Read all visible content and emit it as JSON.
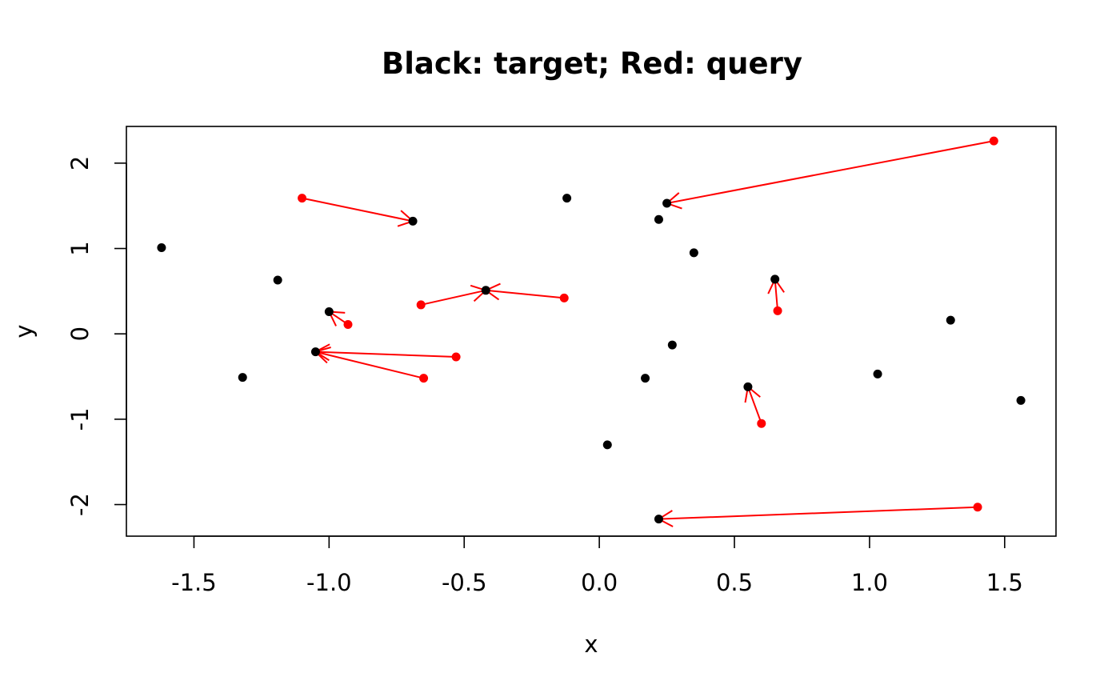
{
  "chart_data": {
    "type": "scatter",
    "title": "Black: target; Red: query",
    "xlabel": "x",
    "ylabel": "y",
    "xlim": [
      -1.75,
      1.69
    ],
    "ylim": [
      -2.37,
      2.43
    ],
    "xticks": [
      -1.5,
      -1.0,
      -0.5,
      0.0,
      0.5,
      1.0,
      1.5
    ],
    "xtick_labels": [
      "-1.5",
      "-1.0",
      "-0.5",
      "0.0",
      "0.5",
      "1.0",
      "1.5"
    ],
    "yticks": [
      -2,
      -1,
      0,
      1,
      2
    ],
    "ytick_labels": [
      "-2",
      "-1",
      "0",
      "1",
      "2"
    ],
    "grid": false,
    "legend": "none",
    "colors": {
      "target": "#000000",
      "query": "#ff0000",
      "arrow": "#ff0000"
    },
    "target_points": [
      [
        -1.62,
        1.01
      ],
      [
        -1.32,
        -0.51
      ],
      [
        -1.19,
        0.63
      ],
      [
        -1.0,
        0.26
      ],
      [
        -1.05,
        -0.21
      ],
      [
        -0.69,
        1.32
      ],
      [
        -0.42,
        0.51
      ],
      [
        -0.12,
        1.59
      ],
      [
        0.03,
        -1.3
      ],
      [
        0.17,
        -0.52
      ],
      [
        0.22,
        1.34
      ],
      [
        0.25,
        1.53
      ],
      [
        0.27,
        -0.13
      ],
      [
        0.35,
        0.95
      ],
      [
        0.55,
        -0.62
      ],
      [
        0.65,
        0.64
      ],
      [
        1.03,
        -0.47
      ],
      [
        1.3,
        0.16
      ],
      [
        1.56,
        -0.78
      ],
      [
        0.22,
        -2.17
      ]
    ],
    "query_points": [
      [
        -1.1,
        1.59
      ],
      [
        -0.93,
        0.11
      ],
      [
        -0.66,
        0.34
      ],
      [
        -0.65,
        -0.52
      ],
      [
        -0.53,
        -0.27
      ],
      [
        -0.13,
        0.42
      ],
      [
        0.6,
        -1.05
      ],
      [
        0.66,
        0.27
      ],
      [
        1.4,
        -2.03
      ],
      [
        1.46,
        2.26
      ]
    ],
    "arrows": [
      {
        "from": [
          -1.1,
          1.59
        ],
        "to": [
          -0.69,
          1.32
        ]
      },
      {
        "from": [
          -0.93,
          0.11
        ],
        "to": [
          -1.0,
          0.26
        ]
      },
      {
        "from": [
          -0.66,
          0.34
        ],
        "to": [
          -0.42,
          0.51
        ]
      },
      {
        "from": [
          -0.13,
          0.42
        ],
        "to": [
          -0.42,
          0.51
        ]
      },
      {
        "from": [
          -0.65,
          -0.52
        ],
        "to": [
          -1.05,
          -0.21
        ]
      },
      {
        "from": [
          -0.53,
          -0.27
        ],
        "to": [
          -1.05,
          -0.21
        ]
      },
      {
        "from": [
          0.6,
          -1.05
        ],
        "to": [
          0.55,
          -0.62
        ]
      },
      {
        "from": [
          0.66,
          0.27
        ],
        "to": [
          0.65,
          0.64
        ]
      },
      {
        "from": [
          1.4,
          -2.03
        ],
        "to": [
          0.22,
          -2.17
        ]
      },
      {
        "from": [
          1.46,
          2.26
        ],
        "to": [
          0.25,
          1.53
        ]
      }
    ]
  }
}
